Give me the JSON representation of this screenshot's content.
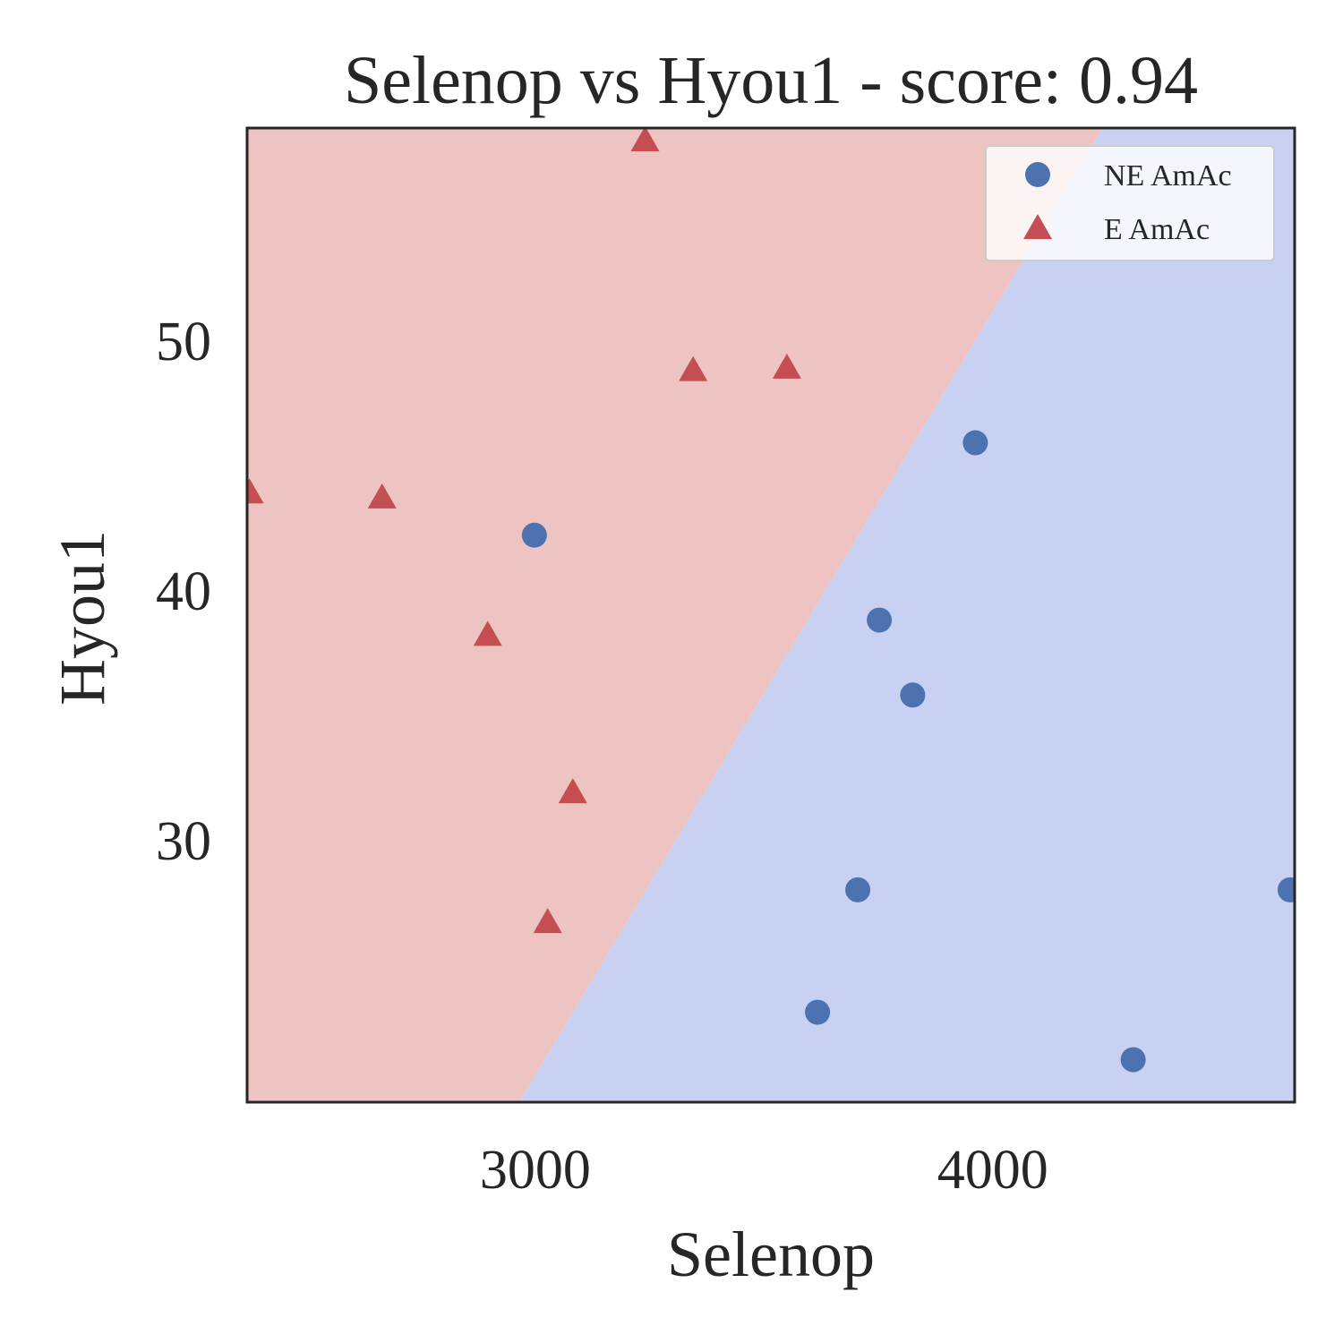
{
  "chart_data": {
    "type": "scatter",
    "title": "Selenop vs Hyou1 - score: 0.94",
    "xlabel": "Selenop",
    "ylabel": "Hyou1",
    "xlim": [
      2370,
      4660
    ],
    "ylim": [
      19.5,
      58.5
    ],
    "xticks": [
      3000,
      4000
    ],
    "yticks": [
      30,
      40,
      50
    ],
    "grid": false,
    "legend_position": "top-right",
    "colors": {
      "region_E": "#eec4c3",
      "region_NE": "#c9d1f2",
      "NE": "#4c72b0",
      "E": "#c44e52",
      "frame": "#262626"
    },
    "decision_boundary": [
      [
        2965,
        19.5
      ],
      [
        4240,
        58.5
      ]
    ],
    "series": [
      {
        "name": "NE AmAc",
        "marker": "circle",
        "points": [
          [
            2998,
            42.2
          ],
          [
            3962,
            45.9
          ],
          [
            3752,
            38.8
          ],
          [
            3825,
            35.8
          ],
          [
            3705,
            28.0
          ],
          [
            3617,
            23.1
          ],
          [
            4307,
            21.2
          ],
          [
            4650,
            28.0
          ]
        ]
      },
      {
        "name": "E AmAc",
        "marker": "triangle",
        "points": [
          [
            3240,
            58.0
          ],
          [
            3345,
            48.8
          ],
          [
            3550,
            48.9
          ],
          [
            2375,
            43.9
          ],
          [
            2665,
            43.7
          ],
          [
            2896,
            38.2
          ],
          [
            3082,
            31.9
          ],
          [
            3027,
            26.7
          ]
        ]
      }
    ]
  }
}
